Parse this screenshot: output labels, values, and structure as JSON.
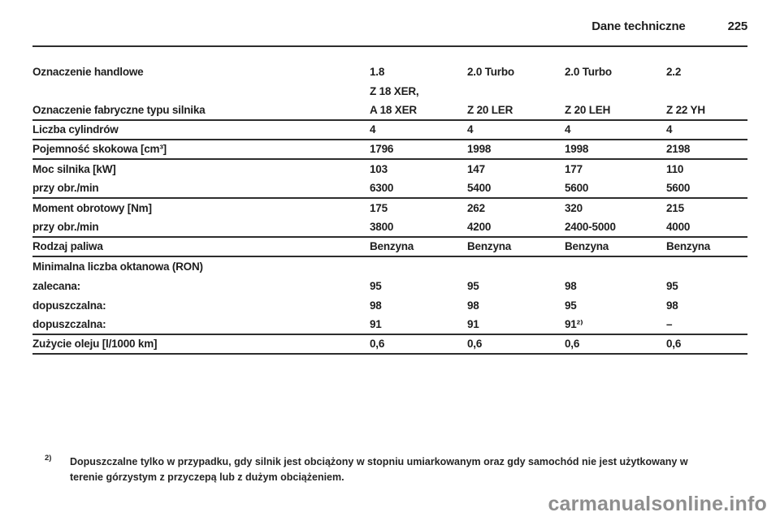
{
  "header": {
    "title": "Dane techniczne",
    "page_number": "225"
  },
  "table": {
    "rows": [
      {
        "label": "Oznaczenie handlowe",
        "values": [
          "1.8",
          "2.0 Turbo",
          "2.0 Turbo",
          "2.2"
        ],
        "rule_after": false
      },
      {
        "label": "",
        "values": [
          "Z 18 XER,",
          "",
          "",
          ""
        ],
        "rule_after": false
      },
      {
        "label": "Oznaczenie fabryczne typu silnika",
        "values": [
          "A 18 XER",
          "Z 20 LER",
          "Z 20 LEH",
          "Z 22 YH"
        ],
        "rule_after": true
      },
      {
        "label": "Liczba cylindrów",
        "values": [
          "4",
          "4",
          "4",
          "4"
        ],
        "rule_after": true
      },
      {
        "label": "Pojemność skokowa [cm³]",
        "values": [
          "1796",
          "1998",
          "1998",
          "2198"
        ],
        "rule_after": true
      },
      {
        "label": "Moc silnika [kW]",
        "values": [
          "103",
          "147",
          "177",
          "110"
        ],
        "rule_after": false
      },
      {
        "label": "przy obr./min",
        "values": [
          "6300",
          "5400",
          "5600",
          "5600"
        ],
        "rule_after": true
      },
      {
        "label": "Moment obrotowy [Nm]",
        "values": [
          "175",
          "262",
          "320",
          "215"
        ],
        "rule_after": false
      },
      {
        "label": "przy obr./min",
        "values": [
          "3800",
          "4200",
          "2400-5000",
          "4000"
        ],
        "rule_after": true
      },
      {
        "label": "Rodzaj paliwa",
        "values": [
          "Benzyna",
          "Benzyna",
          "Benzyna",
          "Benzyna"
        ],
        "rule_after": true
      },
      {
        "label": "Minimalna liczba oktanowa (RON)",
        "values": [
          "",
          "",
          "",
          ""
        ],
        "rule_after": false
      },
      {
        "label": "zalecana:",
        "values": [
          "95",
          "95",
          "98",
          "95"
        ],
        "rule_after": false
      },
      {
        "label": "dopuszczalna:",
        "values": [
          "98",
          "98",
          "95",
          "98"
        ],
        "rule_after": false
      },
      {
        "label": "dopuszczalna:",
        "values": [
          "91",
          "91",
          "91²⁾",
          "–"
        ],
        "rule_after": true
      },
      {
        "label": "Zużycie oleju [l/1000 km]",
        "values": [
          "0,6",
          "0,6",
          "0,6",
          "0,6"
        ],
        "rule_after": true
      }
    ]
  },
  "footnote": {
    "marker": "2)",
    "text": "Dopuszczalne tylko w przypadku, gdy silnik jest obciążony w stopniu umiarkowanym oraz gdy samochód nie jest użytkowany w terenie górzystym z przyczepą lub z dużym obciążeniem."
  },
  "watermark": {
    "text": "carmanualsonline.info"
  }
}
